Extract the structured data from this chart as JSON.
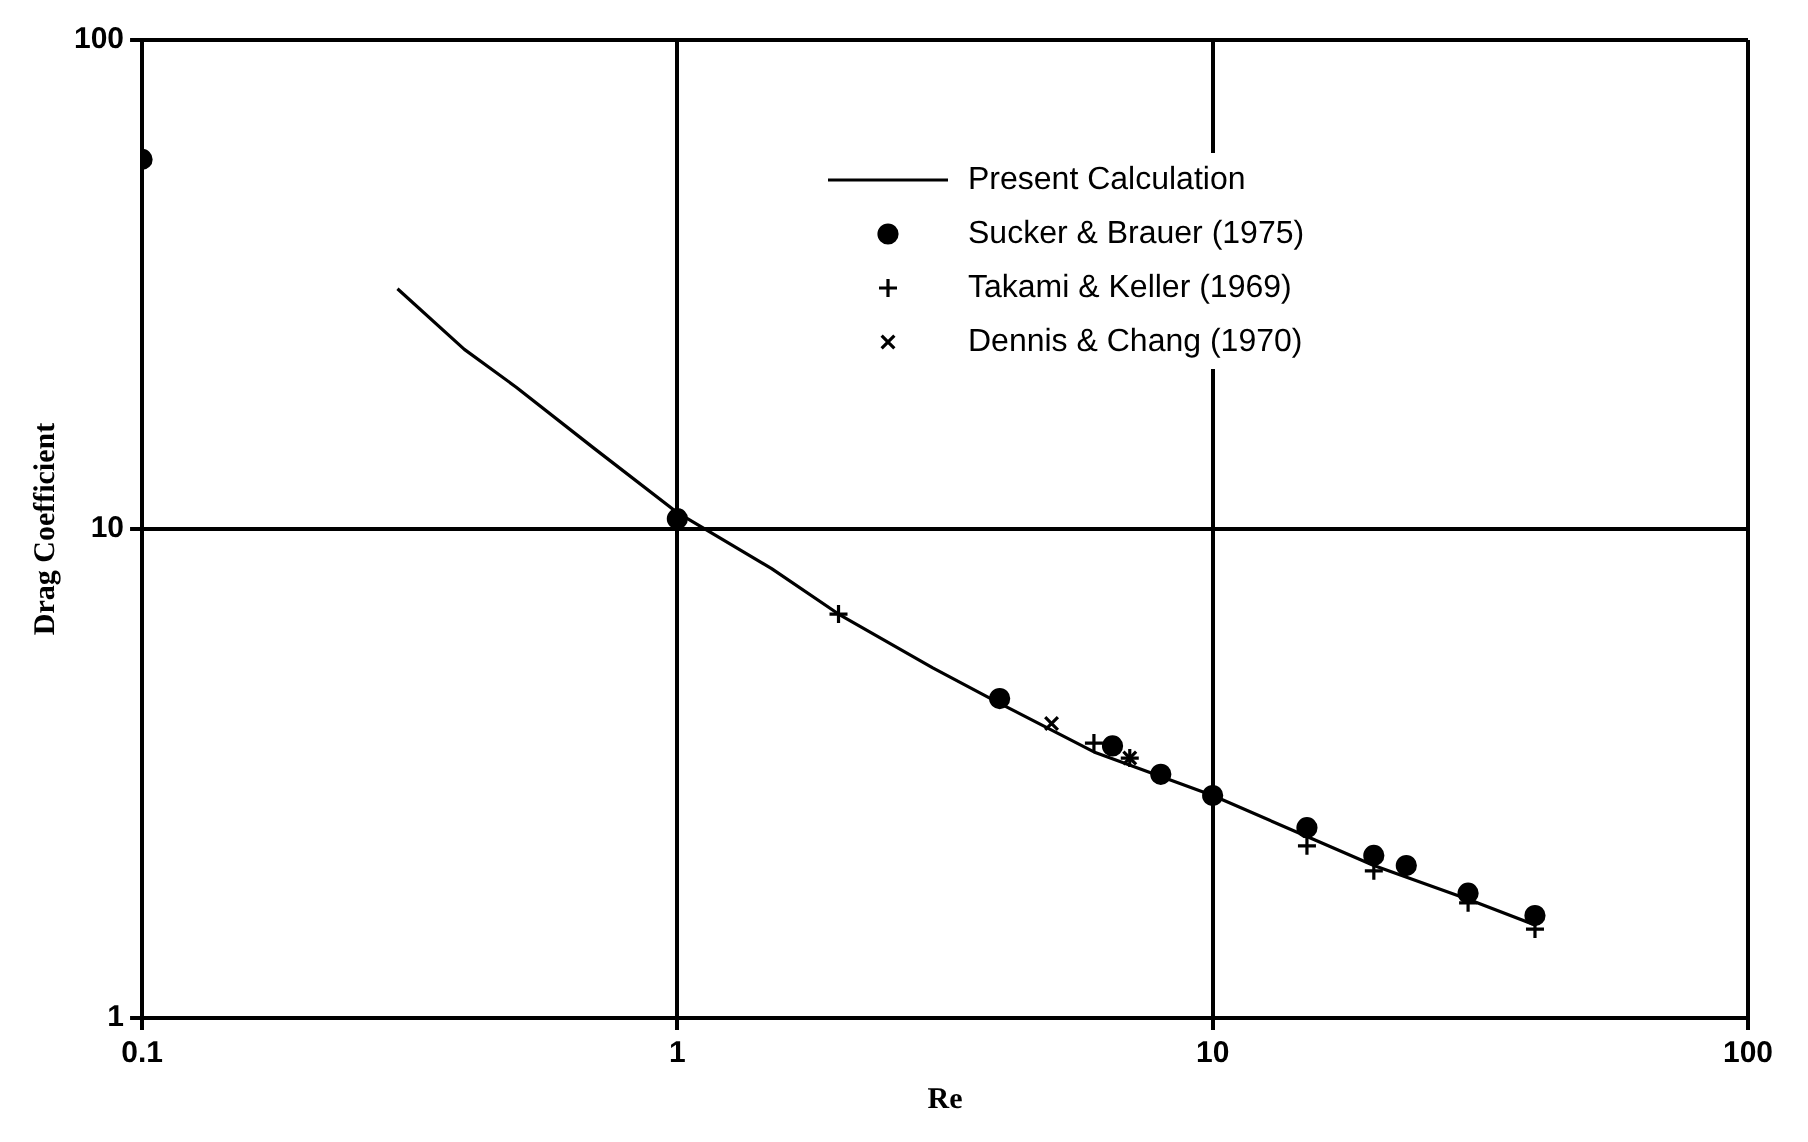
{
  "chart_data": {
    "type": "line",
    "xlabel": "Re",
    "ylabel": "Drag Coefficient",
    "log": "xy",
    "xlim": [
      0.1,
      100
    ],
    "ylim": [
      1,
      100
    ],
    "xticks": [
      0.1,
      1,
      10,
      100
    ],
    "yticks": [
      1,
      10,
      100
    ],
    "grid": true,
    "legend": "top right",
    "series": [
      {
        "name": "Present Calculation",
        "color": "#000000",
        "marker": "none",
        "line_style": "solid",
        "x": [
          0.3,
          0.4,
          0.5,
          0.7,
          1,
          1.5,
          2,
          3,
          4,
          6,
          10,
          15,
          20,
          30,
          40
        ],
        "values": [
          31,
          23.3,
          19.5,
          14.6,
          10.8,
          8.3,
          6.7,
          5.2,
          4.4,
          3.5,
          2.85,
          2.35,
          2.05,
          1.75,
          1.55
        ]
      },
      {
        "name": "Sucker & Brauer (1975)",
        "type": "scatter",
        "color": "#000000",
        "marker": "circle",
        "x": [
          0.1,
          1,
          4,
          6.5,
          8,
          10,
          15,
          20,
          23,
          30,
          40
        ],
        "values": [
          57,
          10.5,
          4.5,
          3.6,
          3.15,
          2.85,
          2.45,
          2.15,
          2.05,
          1.8,
          1.62
        ]
      },
      {
        "name": "Takami & Keller (1969)",
        "type": "scatter",
        "color": "#000000",
        "marker": "cross",
        "x": [
          2,
          6,
          7,
          15,
          20,
          30,
          40
        ],
        "values": [
          6.7,
          3.65,
          3.4,
          2.25,
          2.0,
          1.72,
          1.52
        ]
      },
      {
        "name": "Dennis & Chang (1970)",
        "type": "scatter",
        "color": "#000000",
        "marker": "x",
        "x": [
          5,
          7
        ],
        "values": [
          4.0,
          3.4
        ]
      }
    ]
  }
}
